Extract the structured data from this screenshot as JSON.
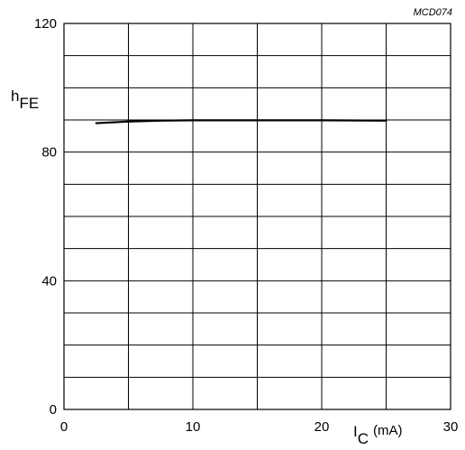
{
  "chart_data": {
    "type": "line",
    "title": "",
    "reference_code": "MCD074",
    "ylabel": {
      "symbol": "h",
      "subscript": "FE"
    },
    "xlabel": {
      "symbol": "I",
      "subscript": "C",
      "unit": "(mA)"
    },
    "xlim": [
      0,
      30
    ],
    "ylim": [
      0,
      120
    ],
    "x_ticks": [
      0,
      10,
      20,
      30
    ],
    "y_ticks": [
      0,
      40,
      80,
      120
    ],
    "x_tick_labels": [
      "0",
      "10",
      "20",
      "30"
    ],
    "y_tick_labels": [
      "0",
      "40",
      "80",
      "120"
    ],
    "grid": true,
    "grid_x_divisions": 6,
    "grid_y_divisions": 12,
    "legend": "none",
    "series": [
      {
        "x": [
          2.5,
          5,
          7.5,
          10,
          15,
          20,
          25
        ],
        "y": [
          89,
          89.5,
          89.8,
          89.9,
          89.9,
          89.9,
          89.8
        ]
      }
    ],
    "colors": {
      "line": "#000000",
      "grid": "#000000",
      "background": "#ffffff"
    }
  }
}
